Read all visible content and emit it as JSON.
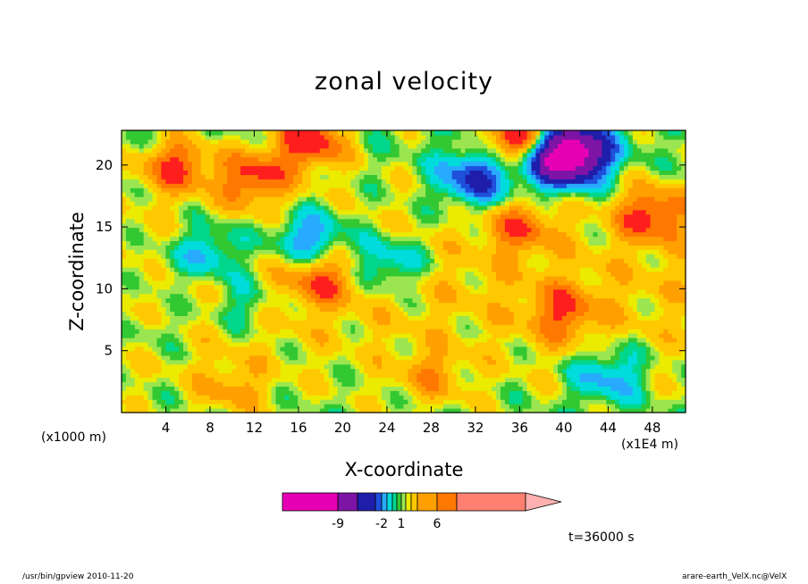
{
  "title": "zonal velocity",
  "footer": {
    "left": "/usr/bin/gpview  2010-11-20",
    "right": "arare-earth_VelX.nc@VelX"
  },
  "time_label": "t=36000 s",
  "colorbar": {
    "colors": [
      "#e600b4",
      "#7d14a5",
      "#1e1eaa",
      "#1e50dc",
      "#28aaff",
      "#00dcdc",
      "#00d78c",
      "#32c832",
      "#9be650",
      "#ebeb00",
      "#ffc800",
      "#ffa000",
      "#ff7800",
      "#ff1e1e",
      "#ff8070",
      "#ffb0b0"
    ],
    "tick_labels": [
      "-9",
      "-2",
      "1",
      "6"
    ]
  },
  "chart_data": {
    "type": "heatmap",
    "title": "zonal velocity",
    "xlabel": "X-coordinate",
    "ylabel": "Z-coordinate",
    "x_unit": "(x1E4 m)",
    "y_unit": "(x1000 m)",
    "xlim": [
      0,
      51
    ],
    "ylim": [
      0,
      22.8
    ],
    "x_ticks": [
      4,
      8,
      12,
      16,
      20,
      24,
      28,
      32,
      36,
      40,
      44,
      48
    ],
    "y_ticks": [
      5,
      10,
      15,
      20
    ],
    "grid": false,
    "levels": [
      -9,
      -2,
      1,
      6
    ],
    "features": [
      {
        "x": 41,
        "z": 21,
        "value": -9
      },
      {
        "x": 39,
        "z": 20.5,
        "value": -6
      },
      {
        "x": 32,
        "z": 19,
        "value": -5
      },
      {
        "x": 17,
        "z": 14,
        "value": -4
      },
      {
        "x": 8,
        "z": 13,
        "value": -3
      },
      {
        "x": 24,
        "z": 12,
        "value": -3
      },
      {
        "x": 11,
        "z": 9,
        "value": -2
      },
      {
        "x": 44,
        "z": 3,
        "value": -3
      },
      {
        "x": 3,
        "z": 11,
        "value": -1
      },
      {
        "x": 3,
        "z": 7,
        "value": -1
      },
      {
        "x": 17,
        "z": 22,
        "value": 5
      },
      {
        "x": 36,
        "z": 22,
        "value": 6
      },
      {
        "x": 12,
        "z": 19,
        "value": 4
      },
      {
        "x": 48,
        "z": 16,
        "value": 4
      },
      {
        "x": 5,
        "z": 20,
        "value": 4
      },
      {
        "x": 18,
        "z": 11,
        "value": 3
      },
      {
        "x": 40,
        "z": 8,
        "value": 3
      },
      {
        "x": 28,
        "z": 3,
        "value": 2
      },
      {
        "x": 10,
        "z": 2,
        "value": 2
      },
      {
        "x": 36,
        "z": 15,
        "value": 3
      }
    ]
  }
}
